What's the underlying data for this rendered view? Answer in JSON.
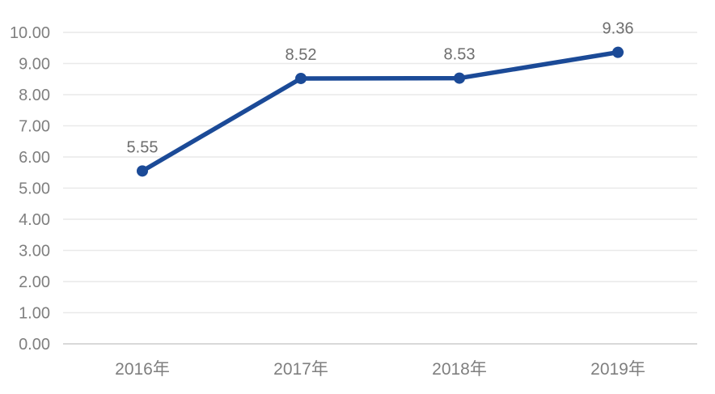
{
  "chart_data": {
    "type": "line",
    "title": "",
    "xlabel": "",
    "ylabel": "",
    "categories": [
      "2016年",
      "2017年",
      "2018年",
      "2019年"
    ],
    "values": [
      5.55,
      8.52,
      8.53,
      9.36
    ],
    "data_labels": [
      "5.55",
      "8.52",
      "8.53",
      "9.36"
    ],
    "ylim": [
      0,
      10
    ],
    "ytick_values": [
      0,
      1,
      2,
      3,
      4,
      5,
      6,
      7,
      8,
      9,
      10
    ],
    "ytick_labels": [
      "0.00",
      "1.00",
      "2.00",
      "3.00",
      "4.00",
      "5.00",
      "6.00",
      "7.00",
      "8.00",
      "9.00",
      "10.00"
    ],
    "grid": true,
    "legend": "none",
    "colors": {
      "line": "#1B4A97",
      "marker": "#1B4A97",
      "axis_text": "#7F7F7F",
      "data_label_text": "#6E6E6E",
      "gridline": "#E9E9E9",
      "baseline": "#D9D9D9",
      "background": "#FFFFFF"
    }
  }
}
